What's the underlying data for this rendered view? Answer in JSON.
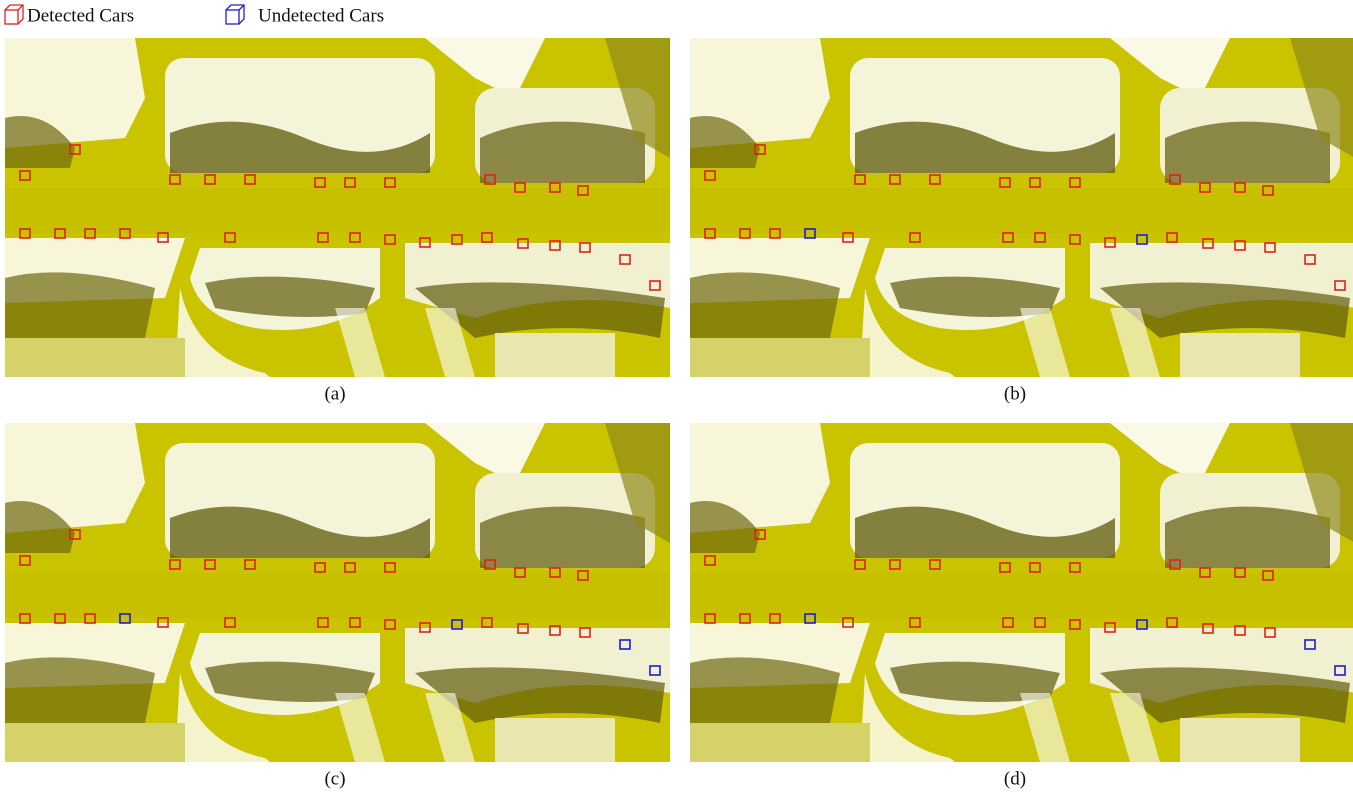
{
  "legend": {
    "detected": "Detected Cars",
    "undetected": "Undetected Cars"
  },
  "panels": [
    {
      "caption": "(a)"
    },
    {
      "caption": "(b)"
    },
    {
      "caption": "(c)"
    },
    {
      "caption": "(d)"
    }
  ]
}
